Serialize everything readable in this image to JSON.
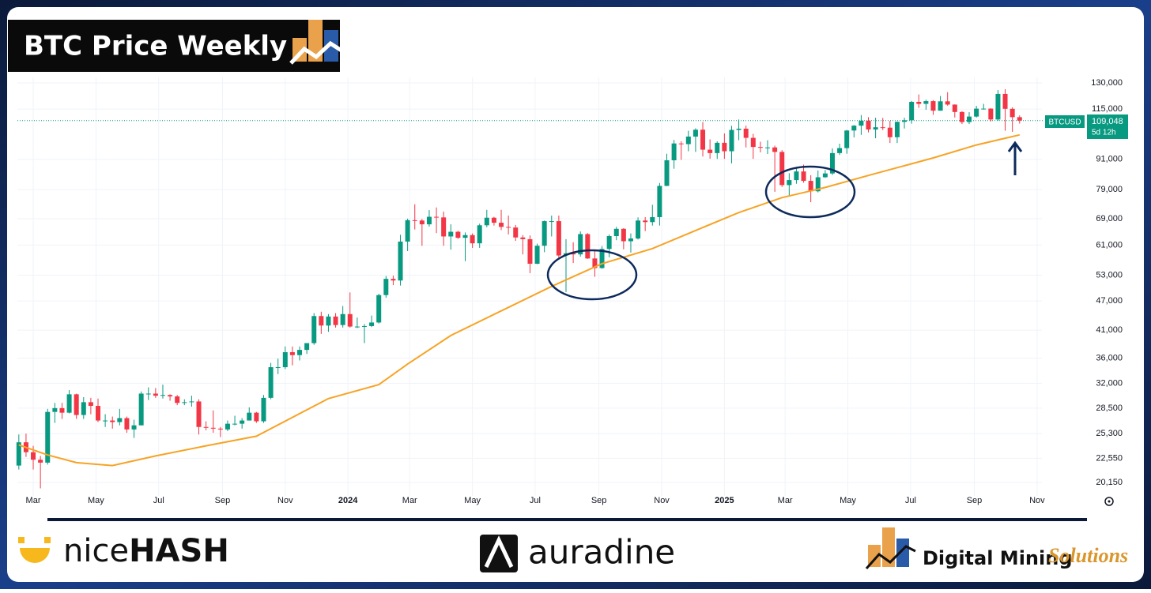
{
  "chart_data": {
    "type": "candlestick",
    "title": "BTC Price Weekly",
    "log": true,
    "grid": true,
    "symbol": "BTCUSD",
    "last_price": {
      "value": 109048,
      "label": "109,048"
    },
    "countdown": "5d 12h",
    "ylim": [
      19490,
      133400
    ],
    "yticks": [
      {
        "value": 130000,
        "label": "130,000"
      },
      {
        "value": 115000,
        "label": "115,000"
      },
      {
        "value": 91000,
        "label": "91,000"
      },
      {
        "value": 79000,
        "label": "79,000"
      },
      {
        "value": 69000,
        "label": "69,000"
      },
      {
        "value": 61000,
        "label": "61,000"
      },
      {
        "value": 53000,
        "label": "53,000"
      },
      {
        "value": 47000,
        "label": "47,000"
      },
      {
        "value": 41000,
        "label": "41,000"
      },
      {
        "value": 36000,
        "label": "36,000"
      },
      {
        "value": 32000,
        "label": "32,000"
      },
      {
        "value": 28500,
        "label": "28,500"
      },
      {
        "value": 25300,
        "label": "25,300"
      },
      {
        "value": 22550,
        "label": "22,550"
      },
      {
        "value": 20150,
        "label": "20,150"
      }
    ],
    "xlim": [
      -0.2,
      142.1
    ],
    "xticks": [
      {
        "value": 2,
        "label": "Mar"
      },
      {
        "value": 10.71,
        "label": "May"
      },
      {
        "value": 19.43,
        "label": "Jul"
      },
      {
        "value": 28.29,
        "label": "Sep"
      },
      {
        "value": 37,
        "label": "Nov"
      },
      {
        "value": 45.71,
        "label": "2024"
      },
      {
        "value": 54.29,
        "label": "Mar"
      },
      {
        "value": 63,
        "label": "May"
      },
      {
        "value": 71.71,
        "label": "Jul"
      },
      {
        "value": 80.57,
        "label": "Sep"
      },
      {
        "value": 89.29,
        "label": "Nov"
      },
      {
        "value": 98,
        "label": "2025"
      },
      {
        "value": 106.43,
        "label": "Mar"
      },
      {
        "value": 115.14,
        "label": "May"
      },
      {
        "value": 123.86,
        "label": "Jul"
      },
      {
        "value": 132.71,
        "label": "Sep"
      },
      {
        "value": 141.43,
        "label": "Nov"
      }
    ],
    "candles": {
      "up_color": "#089981",
      "down_color": "#f23645",
      "open": [
        21800,
        24300,
        23200,
        22400,
        22100,
        28000,
        28500,
        27900,
        30400,
        27600,
        29300,
        28800,
        26900,
        26900,
        26700,
        27200,
        25800,
        26300,
        30500,
        30500,
        30200,
        30300,
        30100,
        29200,
        29300,
        29400,
        26100,
        26000,
        25900,
        25800,
        26500,
        26500,
        26900,
        27900,
        26800,
        29900,
        34500,
        34500,
        37000,
        36500,
        37400,
        38600,
        43800,
        41900,
        43700,
        42000,
        44200,
        41700,
        41700,
        41800,
        42500,
        48300,
        52100,
        51700,
        62000,
        68500,
        68400,
        67200,
        69600,
        69400,
        63500,
        64900,
        63100,
        63900,
        61500,
        66900,
        69300,
        67700,
        66400,
        66200,
        63200,
        62700,
        55900,
        60800,
        68200,
        68200,
        58100,
        58700,
        58400,
        64200,
        57300,
        54800,
        59900,
        63600,
        65800,
        62100,
        62900,
        68400,
        67900,
        69500,
        80400,
        90600,
        98000,
        97700,
        101200,
        104500,
        95200,
        93700,
        98300,
        94500,
        104400,
        105000,
        100600,
        96400,
        96100,
        96200,
        94200,
        80700,
        82600,
        86000,
        82300,
        78400,
        83700,
        85200,
        93700,
        95900,
        104100,
        106500,
        109000,
        104600,
        105700,
        105500,
        100900,
        108400,
        109200,
        119000,
        117900,
        119400,
        114200,
        119300,
        117500,
        113500,
        108300,
        111100,
        115300,
        115300,
        109600,
        123500,
        115200,
        110800
      ],
      "high": [
        25200,
        25300,
        23900,
        22800,
        28400,
        29200,
        29200,
        31000,
        30500,
        30000,
        29900,
        29800,
        27700,
        27400,
        28400,
        27400,
        27000,
        30800,
        31400,
        31300,
        31800,
        30400,
        30300,
        29700,
        30200,
        29700,
        26800,
        28200,
        26100,
        26900,
        27500,
        27200,
        28600,
        28000,
        30300,
        35200,
        35900,
        38000,
        38000,
        38000,
        38600,
        44400,
        44700,
        44200,
        44400,
        45900,
        48900,
        43500,
        42200,
        43900,
        48600,
        52800,
        52900,
        64000,
        69000,
        73800,
        68900,
        71800,
        72700,
        71300,
        67200,
        65200,
        64700,
        64400,
        67400,
        71900,
        69600,
        71900,
        70000,
        67000,
        63900,
        63800,
        61400,
        68400,
        70000,
        70000,
        62700,
        61800,
        65000,
        64500,
        59800,
        60700,
        64100,
        66400,
        66000,
        64400,
        69400,
        69500,
        73600,
        81500,
        93400,
        99600,
        99000,
        104000,
        105200,
        108300,
        99900,
        99000,
        102700,
        106400,
        109600,
        106500,
        102500,
        98800,
        99500,
        97000,
        95000,
        85300,
        87500,
        88800,
        84500,
        86400,
        86600,
        95800,
        97900,
        104400,
        106800,
        111900,
        110800,
        110500,
        110400,
        108900,
        108500,
        110500,
        119500,
        123200,
        120200,
        120000,
        122300,
        124500,
        117600,
        113900,
        113400,
        116800,
        117900,
        115500,
        125700,
        126200,
        116000,
        111700
      ],
      "low": [
        21400,
        22700,
        21400,
        19600,
        21900,
        26600,
        27100,
        27800,
        27100,
        27100,
        27700,
        26700,
        26100,
        25900,
        26300,
        25400,
        24800,
        26300,
        29600,
        29900,
        29800,
        29500,
        28900,
        28900,
        28700,
        25200,
        25700,
        25400,
        24900,
        25600,
        26300,
        25900,
        26900,
        26600,
        26600,
        29700,
        33400,
        34200,
        34800,
        35600,
        36700,
        38300,
        40300,
        40700,
        41500,
        41500,
        41500,
        41400,
        38600,
        41600,
        42300,
        47700,
        50600,
        50500,
        59300,
        65600,
        60800,
        66500,
        64500,
        60800,
        59700,
        62800,
        56600,
        60200,
        60200,
        66300,
        66800,
        65400,
        64100,
        62200,
        58400,
        53500,
        55800,
        59000,
        63500,
        57200,
        49000,
        56100,
        57800,
        57200,
        52600,
        54600,
        57600,
        62400,
        59800,
        58900,
        62600,
        65100,
        66800,
        66800,
        80300,
        87100,
        90800,
        94500,
        94200,
        92200,
        91300,
        91200,
        91200,
        89300,
        99500,
        96200,
        91200,
        94000,
        93300,
        78200,
        80000,
        76600,
        81200,
        81600,
        74500,
        78000,
        83500,
        84600,
        92900,
        93400,
        100800,
        102000,
        103200,
        100400,
        104300,
        98200,
        98200,
        105100,
        107500,
        115700,
        114700,
        112000,
        114200,
        116900,
        110600,
        107300,
        107300,
        110600,
        114800,
        108600,
        109000,
        104000,
        103500,
        107500
      ],
      "close": [
        24300,
        23200,
        22400,
        22100,
        28000,
        28500,
        27900,
        30400,
        27600,
        29300,
        28800,
        26900,
        26900,
        26700,
        27200,
        25800,
        26300,
        30500,
        30500,
        30200,
        30300,
        30100,
        29200,
        29300,
        29400,
        26100,
        26000,
        25900,
        25800,
        26500,
        26500,
        26900,
        27900,
        26800,
        29900,
        34500,
        34500,
        37000,
        36500,
        37400,
        38600,
        43800,
        41900,
        43700,
        42000,
        44200,
        41700,
        41700,
        41800,
        42500,
        48300,
        52100,
        51700,
        62000,
        68500,
        68400,
        67200,
        69600,
        69400,
        63500,
        64900,
        63100,
        63900,
        61500,
        66900,
        69300,
        67700,
        66400,
        66200,
        63200,
        62700,
        55900,
        60800,
        68200,
        68200,
        58100,
        58700,
        58400,
        64200,
        57300,
        54800,
        59900,
        63600,
        65800,
        62100,
        62900,
        68400,
        67900,
        69500,
        80400,
        90600,
        98000,
        97700,
        101200,
        104500,
        95200,
        93700,
        98300,
        94500,
        104400,
        105000,
        100600,
        96400,
        96100,
        96200,
        94200,
        80700,
        82600,
        86000,
        82300,
        78400,
        83700,
        85200,
        93700,
        95900,
        104100,
        106500,
        109000,
        104600,
        105700,
        105500,
        100900,
        108400,
        109200,
        119000,
        117900,
        119400,
        114200,
        119300,
        117500,
        113500,
        108300,
        111100,
        115300,
        115300,
        109600,
        123500,
        115200,
        110800,
        109048
      ]
    },
    "ma": {
      "color": "#f7a325",
      "x": [
        0,
        4,
        8,
        13,
        19,
        26,
        33,
        43,
        50,
        54,
        60,
        68,
        74,
        81,
        88,
        94,
        100,
        106,
        112,
        118,
        127,
        133,
        139
      ],
      "values": [
        24000,
        22900,
        22100,
        21800,
        22800,
        23900,
        25000,
        29800,
        31800,
        35000,
        40000,
        45600,
        50300,
        55900,
        60000,
        65300,
        71000,
        76100,
        79800,
        84400,
        91600,
        97300,
        102000
      ]
    }
  },
  "branding": {
    "nicehash": {
      "light": "nice",
      "bold": "HASH"
    },
    "auradine": "auradine",
    "dms": {
      "main": "Digital Mining",
      "accent": "Solutions"
    }
  }
}
